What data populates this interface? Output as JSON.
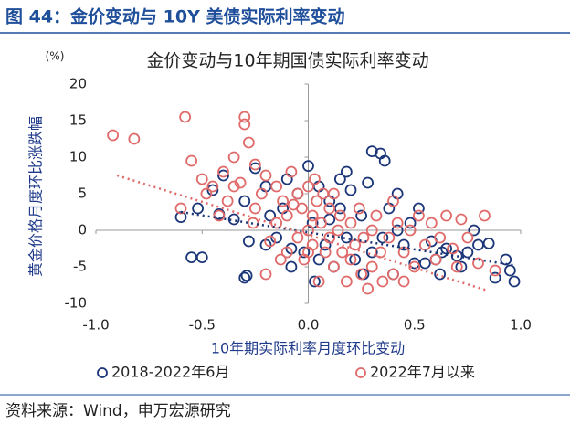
{
  "header": {
    "title": "图 44：金价变动与 10Y 美债实际利率变动"
  },
  "chart_data": {
    "type": "scatter",
    "title": "金价变动与10年期国债实际利率变动",
    "y_unit": "(%)",
    "y_label": "黄金价格月度环比涨跌幅",
    "x_label": "10年期实际利率月度环比变动",
    "xlim": [
      -1.0,
      1.0
    ],
    "ylim": [
      -10,
      20
    ],
    "xticks": [
      {
        "value": -1.0,
        "label": "-1.0"
      },
      {
        "value": -0.5,
        "label": "-0.5"
      },
      {
        "value": 0,
        "label": "0.0"
      },
      {
        "value": 0.5,
        "label": "0.5"
      },
      {
        "value": 1.0,
        "label": "1.0"
      }
    ],
    "yticks": [
      20,
      15,
      10,
      5,
      0,
      -5,
      -10
    ],
    "grid": false,
    "series": [
      {
        "name": "2018-2022年6月",
        "color": "#1a3578",
        "x": [
          -0.55,
          -0.5,
          -0.6,
          -0.52,
          -0.45,
          -0.4,
          -0.42,
          -0.35,
          -0.3,
          -0.28,
          -0.3,
          -0.29,
          -0.25,
          -0.2,
          -0.18,
          -0.15,
          -0.12,
          -0.1,
          -0.08,
          -0.05,
          -0.02,
          0.0,
          0.02,
          0.03,
          0.05,
          0.08,
          0.1,
          0.12,
          0.15,
          0.18,
          0.18,
          0.2,
          0.22,
          0.25,
          0.28,
          0.3,
          0.3,
          0.34,
          0.36,
          0.38,
          0.4,
          0.42,
          0.42,
          0.45,
          0.48,
          0.5,
          0.52,
          0.55,
          0.58,
          0.6,
          0.62,
          0.63,
          0.65,
          0.7,
          0.72,
          0.75,
          0.78,
          0.8,
          0.85,
          0.93,
          0.95,
          0.97,
          0.88,
          -0.08,
          0.05,
          0.1,
          -0.2,
          0.35,
          0.26,
          0.15
        ],
        "values": [
          -3.7,
          -3.7,
          1.8,
          3,
          5.5,
          7.5,
          2.2,
          1.5,
          4,
          -1.5,
          -6.5,
          -6.2,
          8.5,
          6,
          2,
          -1,
          3,
          7,
          -5,
          5,
          -3,
          8.8,
          1,
          -7,
          6,
          -2,
          4,
          -5,
          3,
          8,
          -1,
          5.5,
          -4,
          2,
          6.5,
          -3,
          10.8,
          10.5,
          9.5,
          3,
          -6,
          5,
          0,
          -2,
          1,
          -4.5,
          3,
          -4.5,
          -1.5,
          -4,
          -6,
          -3,
          -2.5,
          -3.5,
          -5,
          -3,
          0,
          -2,
          -1.8,
          -4,
          -5.5,
          -7,
          -6.5,
          -2.5,
          -4,
          1.5,
          -2,
          -1,
          -6,
          7
        ],
        "trend": {
          "x": [
            -0.6,
            0.97
          ],
          "y": [
            2.5,
            -4.8
          ]
        }
      },
      {
        "name": "2022年7月以来",
        "color": "#e06a6a",
        "x": [
          -0.92,
          -0.82,
          -0.58,
          -0.55,
          -0.5,
          -0.45,
          -0.4,
          -0.38,
          -0.35,
          -0.32,
          -0.3,
          -0.3,
          -0.28,
          -0.25,
          -0.25,
          -0.22,
          -0.2,
          -0.18,
          -0.2,
          -0.15,
          -0.15,
          -0.12,
          -0.1,
          -0.1,
          -0.08,
          -0.05,
          -0.05,
          -0.03,
          -0.02,
          0.0,
          0.0,
          0.02,
          0.02,
          0.04,
          0.05,
          0.06,
          0.08,
          0.1,
          0.1,
          0.12,
          0.12,
          0.14,
          0.15,
          0.16,
          0.18,
          0.2,
          0.2,
          0.22,
          0.24,
          0.25,
          0.26,
          0.28,
          0.3,
          0.3,
          0.32,
          0.34,
          0.35,
          0.38,
          0.4,
          0.4,
          0.42,
          0.45,
          0.45,
          0.48,
          0.5,
          0.52,
          0.55,
          0.58,
          0.6,
          0.62,
          0.65,
          0.68,
          0.7,
          0.75,
          0.8,
          0.83,
          0.88,
          -0.6,
          -0.48,
          -0.42,
          -0.35,
          -0.26,
          0.0,
          0.07,
          -0.13,
          0.72,
          0.03,
          -0.07
        ],
        "values": [
          13,
          12.5,
          15.5,
          9.5,
          7,
          6,
          8,
          4,
          10,
          6.5,
          15.5,
          14.5,
          12,
          9,
          3,
          5,
          7.5,
          -1.5,
          -6,
          6,
          1,
          4,
          -3,
          2,
          8,
          5,
          -1,
          3,
          -4,
          6,
          0,
          2,
          -2,
          4,
          -7,
          1,
          -3,
          3,
          -1,
          5,
          -5,
          0,
          2,
          -3,
          -7,
          1,
          -4,
          -2,
          3,
          -6,
          -1,
          -8,
          0,
          -5,
          2,
          -3,
          -7,
          -1,
          -6,
          4,
          1,
          -3,
          -7,
          0,
          -5,
          2,
          -2,
          1,
          -4,
          -1,
          2,
          -2.5,
          -5,
          -1,
          -4.5,
          2,
          -5.5,
          3,
          5,
          2,
          6,
          1,
          -3,
          5,
          -4,
          1.5,
          7,
          3.5
        ],
        "trend": {
          "x": [
            -0.9,
            0.85
          ],
          "y": [
            7.5,
            -8.3
          ]
        }
      }
    ]
  },
  "source": "资料来源：Wind，申万宏源研究"
}
